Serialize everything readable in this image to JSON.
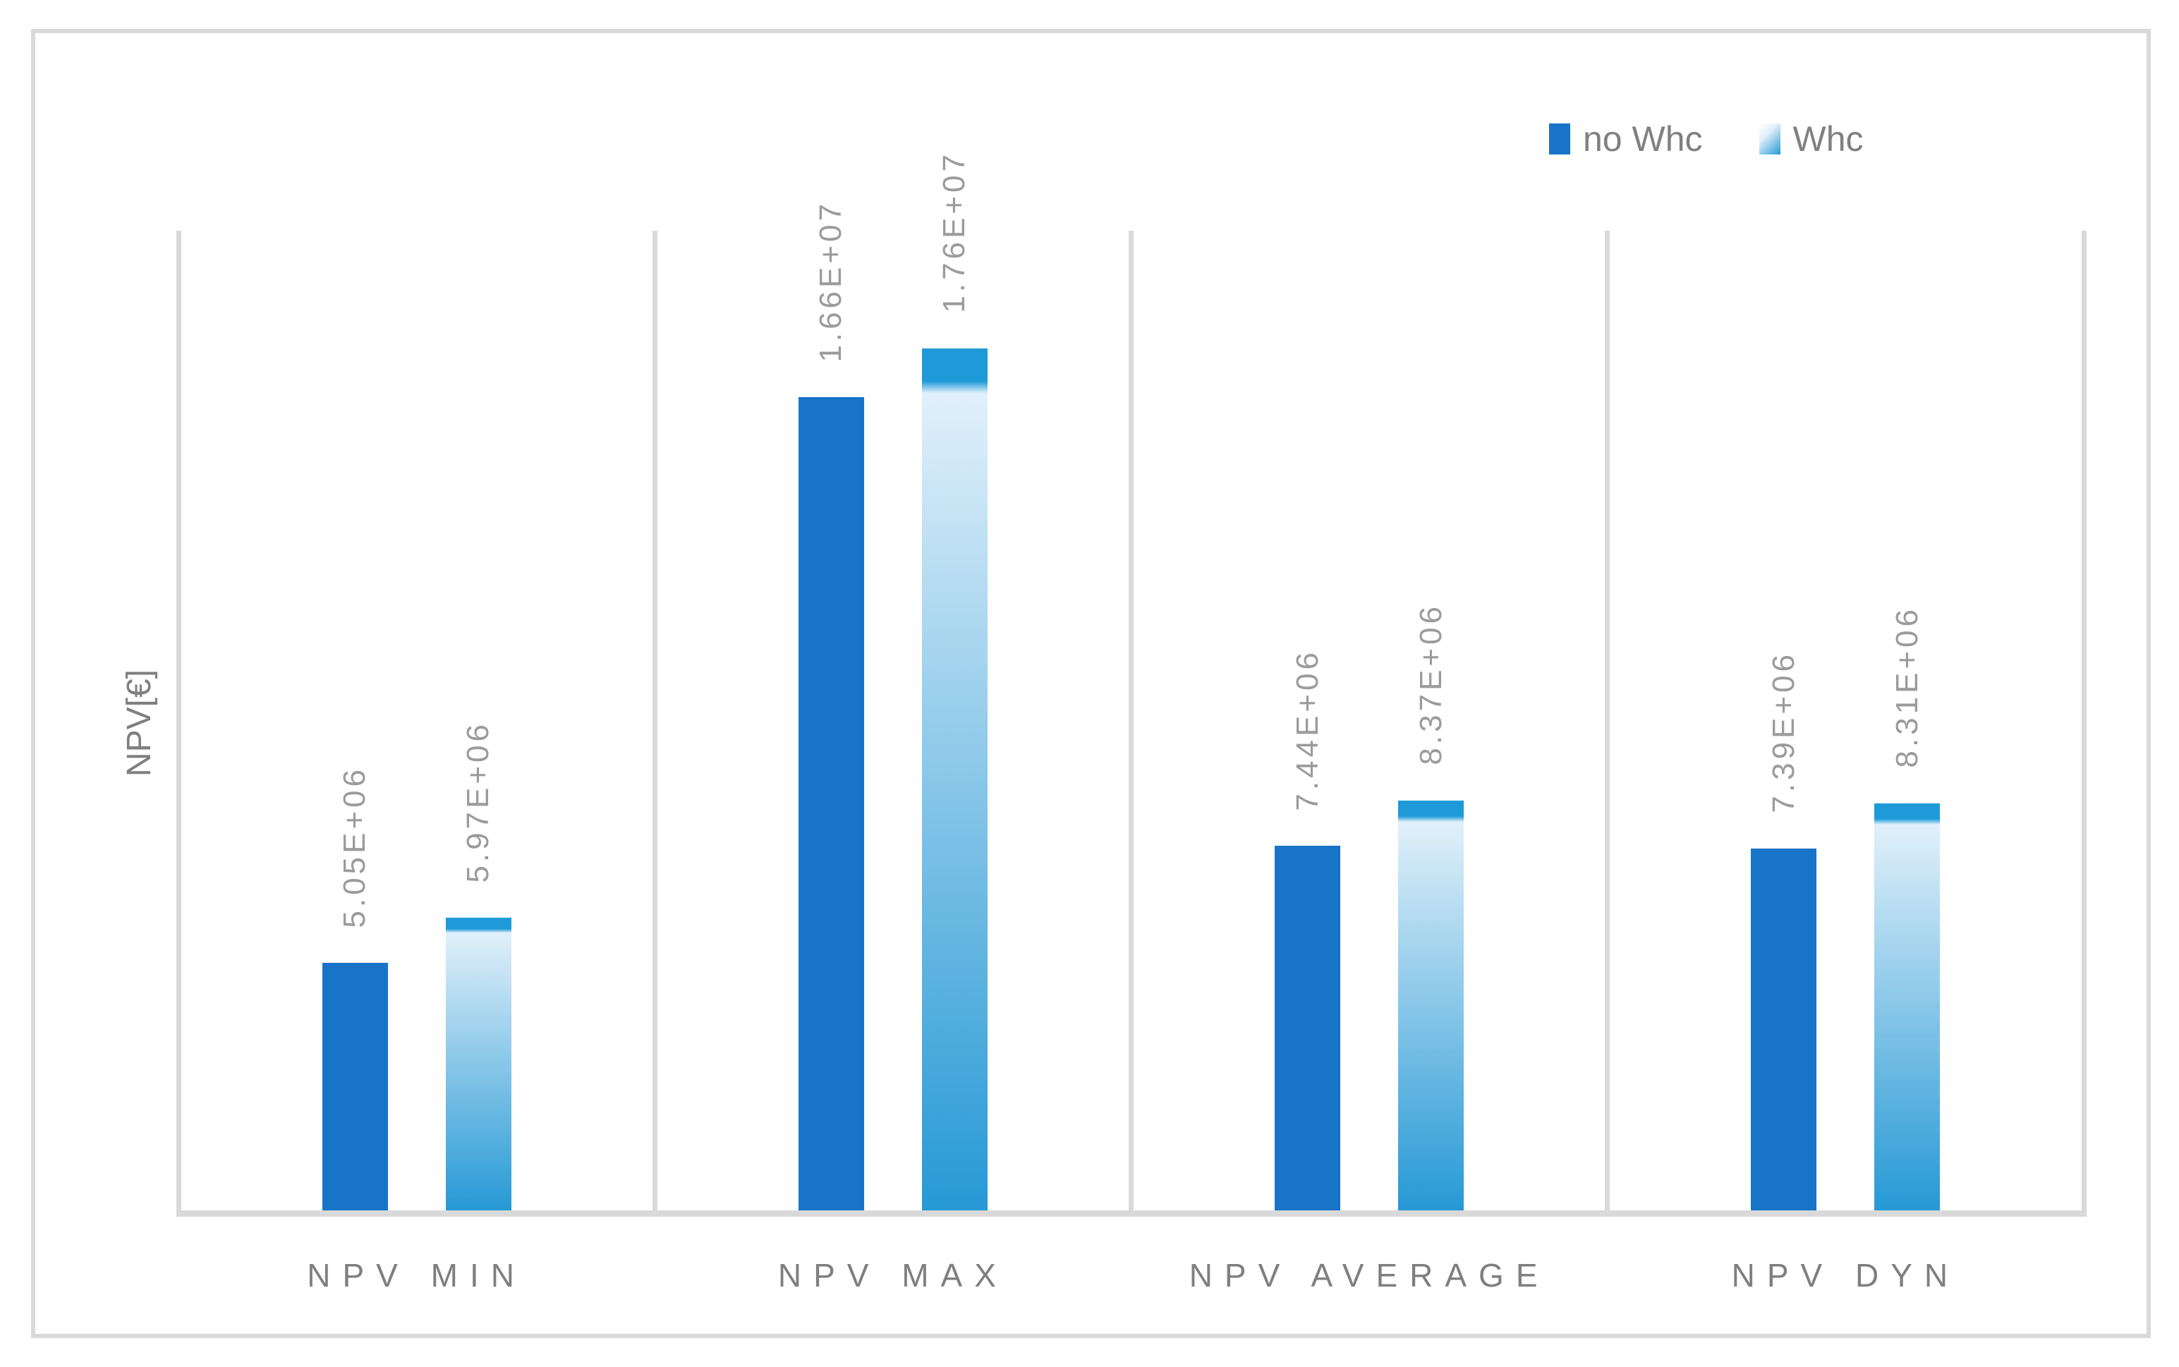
{
  "chart_data": {
    "type": "bar",
    "title": "",
    "ylabel": "NPV[€]",
    "categories": [
      "NPV MIN",
      "NPV MAX",
      "NPV AVERAGE",
      "NPV DYN"
    ],
    "series": [
      {
        "name": "no Whc",
        "style": "solid",
        "color": "#1874C9",
        "values": [
          5050000,
          16600000,
          7440000,
          7390000
        ],
        "labels": [
          "5.05E+06",
          "1.66E+07",
          "7.44E+06",
          "7.39E+06"
        ]
      },
      {
        "name": "Whc",
        "style": "gradient",
        "cap_color": "#1E9AD8",
        "top_color": "#E1F0FA",
        "bottom_color": "#2699D5",
        "values": [
          5970000,
          17600000,
          8370000,
          8310000
        ],
        "labels": [
          "5.97E+06",
          "1.76E+07",
          "8.37E+06",
          "8.31E+06"
        ]
      }
    ],
    "ylim": [
      0,
      20000000
    ],
    "grid": "vertical-category-separators",
    "legend_position": "top-right",
    "axis_color": "#D9D9D9",
    "category_text_color": "#7F7F7F",
    "data_label_color": "#9B9B9B",
    "legend_text_color": "#808080"
  }
}
